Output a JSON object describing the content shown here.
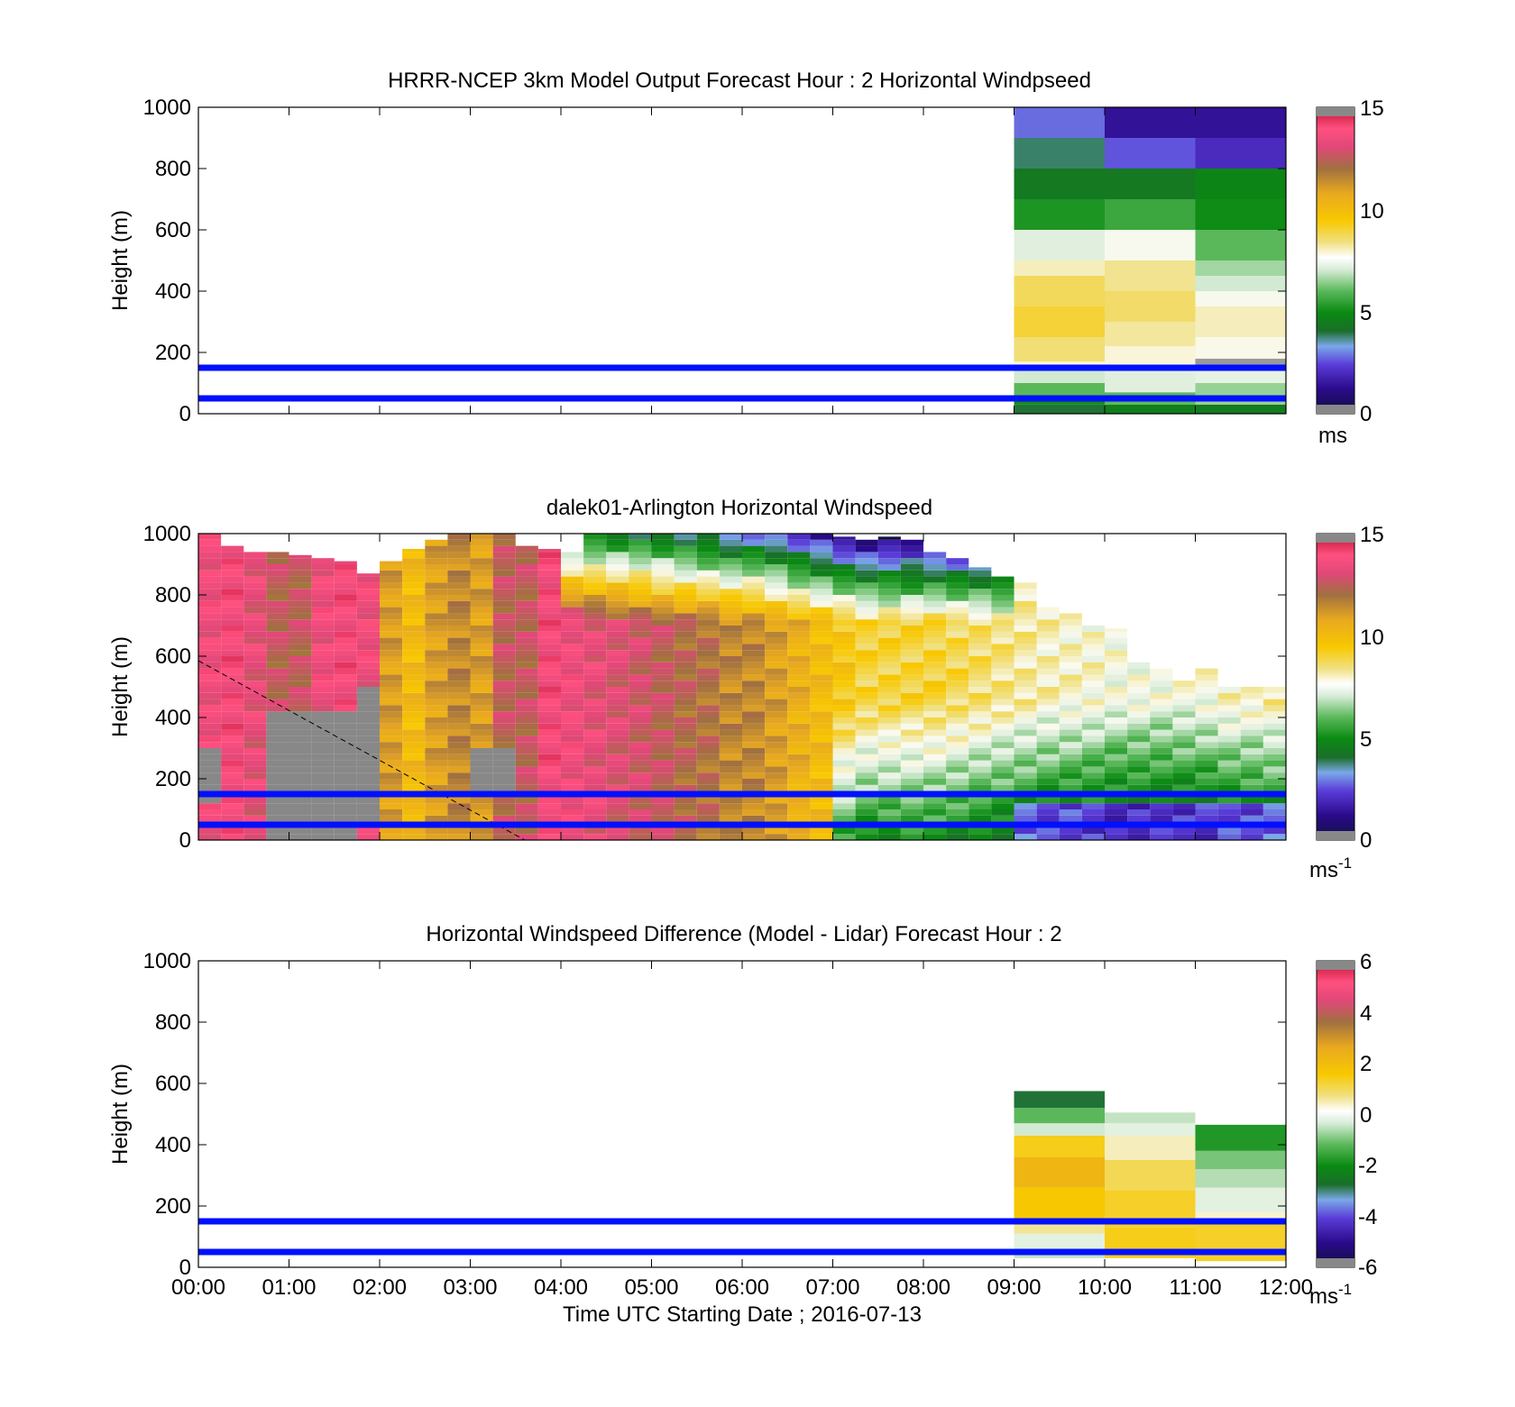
{
  "figure": {
    "time_axis_label": "Time UTC  Starting Date ; 2016-07-13",
    "time_ticks": [
      "00:00",
      "01:00",
      "02:00",
      "03:00",
      "04:00",
      "05:00",
      "06:00",
      "07:00",
      "08:00",
      "09:00",
      "10:00",
      "11:00",
      "12:00"
    ],
    "height_ticks": [
      "0",
      "200",
      "400",
      "600",
      "800",
      "1000"
    ],
    "ylabel": "Height (m)",
    "reference_line_color": "#0010ff"
  },
  "chart_data": [
    {
      "type": "heatmap",
      "title": "HRRR-NCEP 3km Model Output   Forecast Hour : 2 Horizontal Windpseed",
      "ylabel": "Height (m)",
      "xlabel": "",
      "xlim": [
        0,
        12
      ],
      "ylim": [
        0,
        1000
      ],
      "colorbar": {
        "ticks": [
          "0",
          "5",
          "10",
          "15"
        ],
        "range": [
          0,
          15
        ],
        "unit": "ms"
      },
      "reference_lines_m": [
        150,
        50
      ],
      "columns": [
        {
          "x0": 9,
          "x1": 10,
          "cells": [
            {
              "y0": 0,
              "y1": 30,
              "v": 4
            },
            {
              "y0": 30,
              "y1": 60,
              "v": 5
            },
            {
              "y0": 60,
              "y1": 100,
              "v": 6
            },
            {
              "y0": 100,
              "y1": 140,
              "v": 7
            },
            {
              "y0": 140,
              "y1": 170,
              "v": 7.8
            },
            {
              "y0": 170,
              "y1": 250,
              "v": 8.5
            },
            {
              "y0": 250,
              "y1": 350,
              "v": 9
            },
            {
              "y0": 350,
              "y1": 450,
              "v": 8.7
            },
            {
              "y0": 450,
              "y1": 500,
              "v": 8
            },
            {
              "y0": 500,
              "y1": 600,
              "v": 7.2
            },
            {
              "y0": 600,
              "y1": 700,
              "v": 5.2
            },
            {
              "y0": 700,
              "y1": 800,
              "v": 4.4
            },
            {
              "y0": 800,
              "y1": 900,
              "v": 3.8
            },
            {
              "y0": 900,
              "y1": 1000,
              "v": 2.8
            }
          ]
        },
        {
          "x0": 10,
          "x1": 11,
          "cells": [
            {
              "y0": 0,
              "y1": 30,
              "v": 4.6
            },
            {
              "y0": 30,
              "y1": 70,
              "v": 6
            },
            {
              "y0": 70,
              "y1": 150,
              "v": 7.2
            },
            {
              "y0": 150,
              "y1": 220,
              "v": 7.8
            },
            {
              "y0": 220,
              "y1": 300,
              "v": 8.2
            },
            {
              "y0": 300,
              "y1": 400,
              "v": 8.6
            },
            {
              "y0": 400,
              "y1": 500,
              "v": 8.3
            },
            {
              "y0": 500,
              "y1": 600,
              "v": 7.6
            },
            {
              "y0": 600,
              "y1": 700,
              "v": 5.6
            },
            {
              "y0": 700,
              "y1": 800,
              "v": 4.4
            },
            {
              "y0": 800,
              "y1": 900,
              "v": 2.6
            },
            {
              "y0": 900,
              "y1": 1000,
              "v": 1.4
            }
          ]
        },
        {
          "x0": 11,
          "x1": 12,
          "cells": [
            {
              "y0": 0,
              "y1": 30,
              "v": 4.5
            },
            {
              "y0": 30,
              "y1": 100,
              "v": 6.5
            },
            {
              "y0": 100,
              "y1": 160,
              "v": 7.3
            },
            {
              "y0": 160,
              "y1": 180,
              "v": 0
            },
            {
              "y0": 180,
              "y1": 250,
              "v": 7.7
            },
            {
              "y0": 250,
              "y1": 350,
              "v": 8
            },
            {
              "y0": 350,
              "y1": 400,
              "v": 7.6
            },
            {
              "y0": 400,
              "y1": 450,
              "v": 7
            },
            {
              "y0": 450,
              "y1": 500,
              "v": 6.6
            },
            {
              "y0": 500,
              "y1": 600,
              "v": 6
            },
            {
              "y0": 600,
              "y1": 700,
              "v": 5
            },
            {
              "y0": 700,
              "y1": 800,
              "v": 4.8
            },
            {
              "y0": 800,
              "y1": 900,
              "v": 2
            },
            {
              "y0": 900,
              "y1": 1000,
              "v": 1.4
            }
          ]
        }
      ]
    },
    {
      "type": "heatmap",
      "title": "dalek01-Arlington  Horizontal Windspeed",
      "ylabel": "Height (m)",
      "xlabel": "",
      "xlim": [
        0,
        12
      ],
      "ylim": [
        0,
        1000
      ],
      "colorbar": {
        "ticks": [
          "0",
          "5",
          "10",
          "15"
        ],
        "range": [
          0,
          15
        ],
        "unit": "ms",
        "unit_exponent": "-1"
      },
      "reference_lines_m": [
        150,
        50
      ],
      "dashed_line": {
        "x": [
          0,
          3.6
        ],
        "y": [
          590,
          0
        ]
      },
      "profiles": [
        {
          "t": 0.0,
          "top": 1000,
          "v": 13.5
        },
        {
          "t": 0.25,
          "top": 960,
          "v": 13.8
        },
        {
          "t": 0.5,
          "top": 940,
          "v": 13.2
        },
        {
          "t": 0.75,
          "top": 940,
          "v": 12.5
        },
        {
          "t": 1.0,
          "top": 930,
          "v": 12.5
        },
        {
          "t": 1.25,
          "top": 920,
          "v": 13.5
        },
        {
          "t": 1.5,
          "top": 910,
          "v": 13.8
        },
        {
          "t": 1.75,
          "top": 870,
          "v": 13.5
        },
        {
          "t": 2.0,
          "top": 910,
          "v": 11
        },
        {
          "t": 2.25,
          "top": 950,
          "v": 10
        },
        {
          "t": 2.5,
          "top": 980,
          "v": 11
        },
        {
          "t": 2.75,
          "top": 1000,
          "v": 11.5
        },
        {
          "t": 3.0,
          "top": 1000,
          "v": 11
        },
        {
          "t": 3.25,
          "top": 1000,
          "v": 12.5
        },
        {
          "t": 3.5,
          "top": 960,
          "v": 12.5
        },
        {
          "t": 3.75,
          "top": 950,
          "v": 13.8
        },
        {
          "t": 4.0,
          "top": 940,
          "v": 13.5
        },
        {
          "t": 4.25,
          "top": 1000,
          "v": 13.2
        },
        {
          "t": 4.5,
          "top": 1000,
          "v": 13
        },
        {
          "t": 4.75,
          "top": 1000,
          "v": 12.8
        },
        {
          "t": 5.0,
          "top": 1000,
          "v": 12.5
        },
        {
          "t": 5.25,
          "top": 1000,
          "v": 12.2
        },
        {
          "t": 5.5,
          "top": 1000,
          "v": 12
        },
        {
          "t": 5.75,
          "top": 1000,
          "v": 11.5
        },
        {
          "t": 6.0,
          "top": 1000,
          "v": 11.5
        },
        {
          "t": 6.25,
          "top": 1000,
          "v": 11
        },
        {
          "t": 6.5,
          "top": 1000,
          "v": 10.5
        },
        {
          "t": 6.75,
          "top": 1000,
          "v": 10
        },
        {
          "t": 7.0,
          "top": 990,
          "v": 9.5
        },
        {
          "t": 7.25,
          "top": 980,
          "v": 9
        },
        {
          "t": 7.5,
          "top": 990,
          "v": 9
        },
        {
          "t": 7.75,
          "top": 980,
          "v": 9
        },
        {
          "t": 8.0,
          "top": 940,
          "v": 9
        },
        {
          "t": 8.25,
          "top": 920,
          "v": 8.8
        },
        {
          "t": 8.5,
          "top": 890,
          "v": 8.6
        },
        {
          "t": 8.75,
          "top": 860,
          "v": 8.4
        },
        {
          "t": 9.0,
          "top": 840,
          "v": 8.2
        },
        {
          "t": 9.25,
          "top": 760,
          "v": 8
        },
        {
          "t": 9.5,
          "top": 740,
          "v": 7.9
        },
        {
          "t": 9.75,
          "top": 700,
          "v": 7.8
        },
        {
          "t": 10.0,
          "top": 690,
          "v": 7.6
        },
        {
          "t": 10.25,
          "top": 580,
          "v": 7.6
        },
        {
          "t": 10.5,
          "top": 560,
          "v": 7.5
        },
        {
          "t": 10.75,
          "top": 520,
          "v": 7.6
        },
        {
          "t": 11.0,
          "top": 560,
          "v": 7.7
        },
        {
          "t": 11.25,
          "top": 500,
          "v": 8
        },
        {
          "t": 11.5,
          "top": 500,
          "v": 8
        },
        {
          "t": 11.75,
          "top": 500,
          "v": 8.2
        }
      ]
    },
    {
      "type": "heatmap",
      "title": "Horizontal Windspeed Difference (Model - Lidar) Forecast Hour : 2",
      "ylabel": "Height (m)",
      "xlabel": "Time UTC  Starting Date ; 2016-07-13",
      "xlim": [
        0,
        12
      ],
      "ylim": [
        0,
        1000
      ],
      "colorbar": {
        "ticks": [
          "-6",
          "-4",
          "-2",
          "0",
          "2",
          "4",
          "6"
        ],
        "range": [
          -6,
          6
        ],
        "unit": "ms",
        "unit_exponent": "-1"
      },
      "reference_lines_m": [
        150,
        50
      ],
      "columns": [
        {
          "x0": 9,
          "x1": 10,
          "cells": [
            {
              "y0": 30,
              "y1": 60,
              "v": -0.5
            },
            {
              "y0": 60,
              "y1": 110,
              "v": -0.2
            },
            {
              "y0": 110,
              "y1": 150,
              "v": 0.6
            },
            {
              "y0": 150,
              "y1": 260,
              "v": 1.6
            },
            {
              "y0": 260,
              "y1": 360,
              "v": 2.2
            },
            {
              "y0": 360,
              "y1": 430,
              "v": 1.4
            },
            {
              "y0": 430,
              "y1": 470,
              "v": -0.4
            },
            {
              "y0": 470,
              "y1": 520,
              "v": -1.2
            },
            {
              "y0": 520,
              "y1": 575,
              "v": -2.8
            }
          ]
        },
        {
          "x0": 10,
          "x1": 11,
          "cells": [
            {
              "y0": 30,
              "y1": 130,
              "v": 1.4
            },
            {
              "y0": 130,
              "y1": 250,
              "v": 1.3
            },
            {
              "y0": 250,
              "y1": 350,
              "v": 1.0
            },
            {
              "y0": 350,
              "y1": 430,
              "v": 0.4
            },
            {
              "y0": 430,
              "y1": 470,
              "v": -0.2
            },
            {
              "y0": 470,
              "y1": 505,
              "v": -0.5
            }
          ]
        },
        {
          "x0": 11,
          "x1": 12,
          "cells": [
            {
              "y0": 20,
              "y1": 140,
              "v": 1.3
            },
            {
              "y0": 140,
              "y1": 180,
              "v": 0.3
            },
            {
              "y0": 180,
              "y1": 260,
              "v": -0.2
            },
            {
              "y0": 260,
              "y1": 320,
              "v": -0.6
            },
            {
              "y0": 320,
              "y1": 380,
              "v": -1.0
            },
            {
              "y0": 380,
              "y1": 465,
              "v": -1.8
            }
          ]
        }
      ]
    }
  ]
}
